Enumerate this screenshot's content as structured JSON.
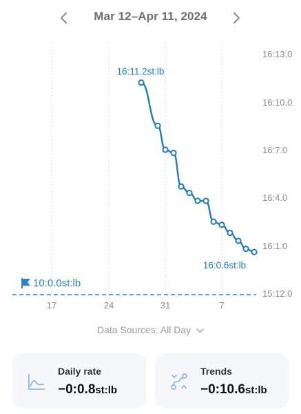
{
  "header": {
    "range": "Mar 12–Apr 11, 2024",
    "prev_icon": "chevron-left-icon",
    "next_icon": "chevron-right-icon"
  },
  "chart_data": {
    "type": "line",
    "unit": "st:lb",
    "y_ticks": [
      "16:13.0",
      "16:10.0",
      "16:7.0",
      "16:4.0",
      "16:1.0",
      "15:12.0"
    ],
    "x_ticks": [
      "17",
      "24",
      "31",
      "7"
    ],
    "series": [
      {
        "values_lb": [
          11.2,
          8.5,
          7.0,
          6.8,
          4.7,
          4.3,
          3.8,
          3.8,
          2.5,
          2.3,
          1.8,
          1.3,
          0.8,
          0.6
        ],
        "color": "#1f7bc0"
      }
    ],
    "max_label": "16:11.2st:lb",
    "min_label": "16:0.6st:lb",
    "goal": {
      "label": "10:0.0st:lb",
      "icon": "flag-icon"
    },
    "grid": "vertical dashed",
    "colors": {
      "line": "#1f7bc0",
      "goal": "#2b86c8",
      "grid": "#d7d7d7",
      "ticks": "#8a8a8a"
    }
  },
  "sources": {
    "label": "Data Sources: All Day"
  },
  "cards": [
    {
      "title": "Daily rate",
      "value": "−0:0.8",
      "unit": "st:lb",
      "icon": "area-chart-icon"
    },
    {
      "title": "Trends",
      "value": "−0:10.6",
      "unit": "st:lb",
      "icon": "trend-path-icon"
    }
  ]
}
